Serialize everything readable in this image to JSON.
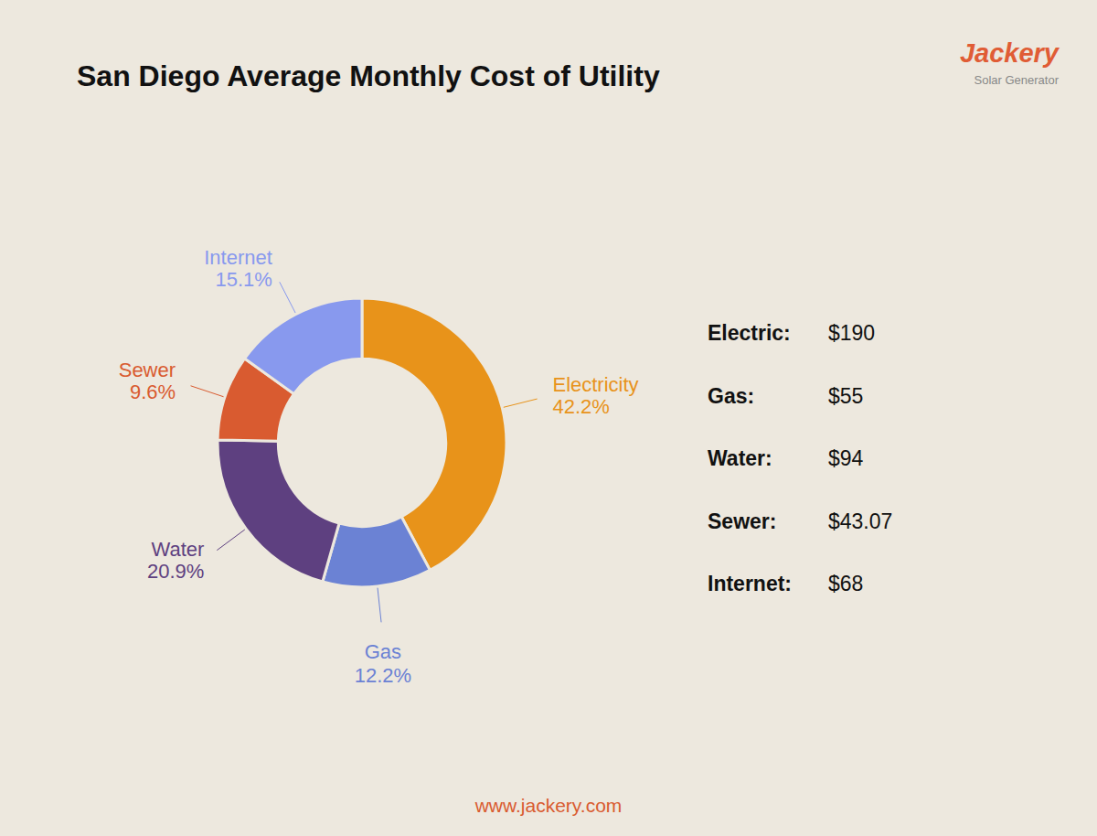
{
  "chart_data": {
    "type": "donut",
    "title": "San Diego Average Monthly Cost of Utility",
    "categories": [
      "Electricity",
      "Gas",
      "Water",
      "Sewer",
      "Internet"
    ],
    "values": [
      42.2,
      12.2,
      20.9,
      9.6,
      15.1
    ],
    "value_labels": [
      "42.2%",
      "12.2%",
      "20.9%",
      "9.6%",
      "15.1%"
    ],
    "colors": [
      "#E8931A",
      "#6B82D4",
      "#5E4080",
      "#D95B30",
      "#8899EE"
    ],
    "data_labels": true,
    "background": "#ede8de",
    "annotations": [
      {
        "text": "Electric:",
        "detail": "$190"
      },
      {
        "text": "Gas:",
        "detail": "$55"
      },
      {
        "text": "Water:",
        "detail": "$94"
      },
      {
        "text": "Sewer:",
        "detail": "$43.07"
      },
      {
        "text": "Internet:",
        "detail": "$68"
      }
    ],
    "footer": {
      "text": "www.jackery.com",
      "color": "#D95B30"
    },
    "brand": {
      "text": "Jackery",
      "color": "#E05C35"
    },
    "brand_subtitle": {
      "text": "Solar Generator",
      "color": "#888888"
    }
  }
}
